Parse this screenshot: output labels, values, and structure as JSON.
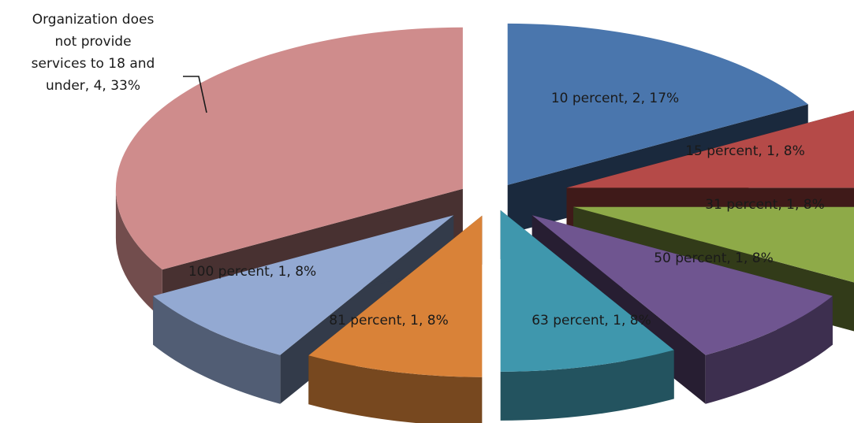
{
  "chart_data": {
    "type": "pie",
    "style": "3d-exploded",
    "title": "",
    "legend": "none",
    "slices": [
      {
        "label": "10 percent",
        "value": 2,
        "percent": "17%",
        "color": "#4a76ad"
      },
      {
        "label": "15 percent",
        "value": 1,
        "percent": "8%",
        "color": "#b54a48"
      },
      {
        "label": "31 percent",
        "value": 1,
        "percent": "8%",
        "color": "#8eaa48"
      },
      {
        "label": "50 percent",
        "value": 1,
        "percent": "8%",
        "color": "#6f5590"
      },
      {
        "label": "63 percent",
        "value": 1,
        "percent": "8%",
        "color": "#3f97ad"
      },
      {
        "label": "81 percent",
        "value": 1,
        "percent": "8%",
        "color": "#d98238"
      },
      {
        "label": "100 percent",
        "value": 1,
        "percent": "8%",
        "color": "#93a9d2"
      },
      {
        "label": "Organization does not provide services to 18 and under",
        "value": 4,
        "percent": "33%",
        "color": "#cf8c8c"
      }
    ]
  }
}
